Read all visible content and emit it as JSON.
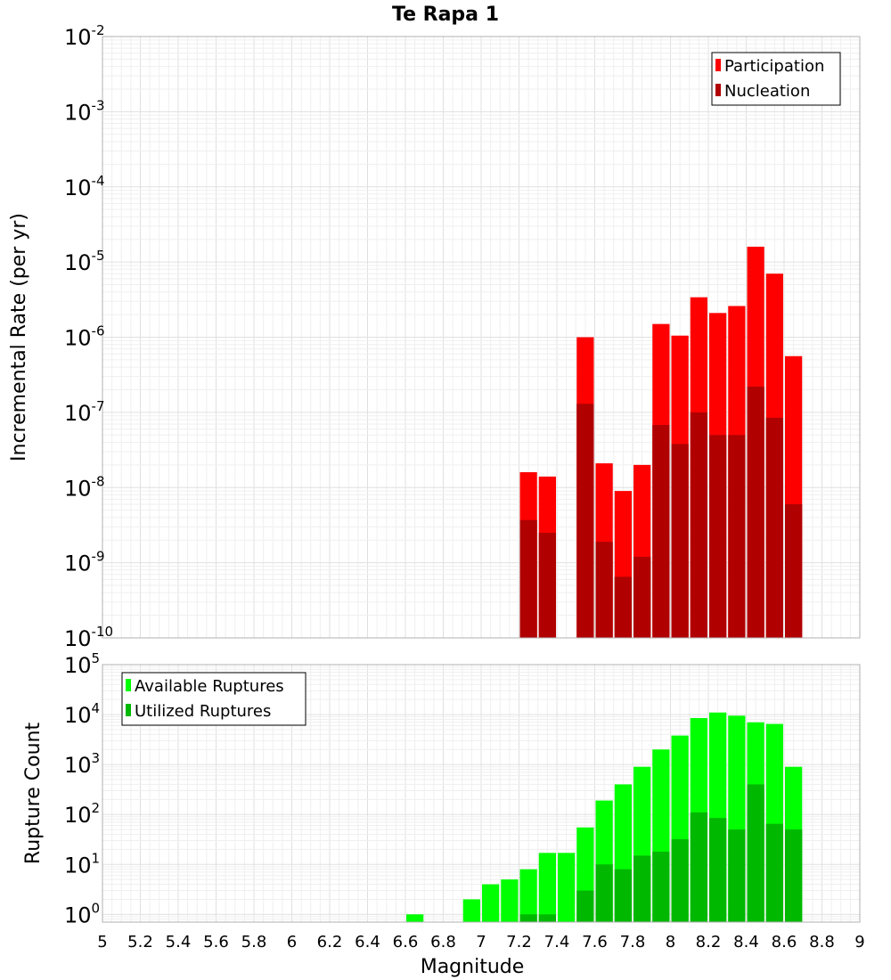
{
  "chart_data": [
    {
      "type": "bar",
      "title": "Te Rapa 1",
      "xlabel": "",
      "ylabel": "Incremental Rate (per yr)",
      "yscale": "log",
      "ylim": [
        1e-10,
        0.01
      ],
      "xlim": [
        5,
        9
      ],
      "bar_width": 0.1,
      "grid": true,
      "legend_position": "top-right",
      "series": [
        {
          "name": "Participation",
          "color": "#ff0000",
          "x": [
            7.25,
            7.35,
            7.55,
            7.65,
            7.75,
            7.85,
            7.95,
            8.05,
            8.15,
            8.25,
            8.35,
            8.45,
            8.55,
            8.65
          ],
          "values": [
            1.6e-08,
            1.4e-08,
            1e-06,
            2.1e-08,
            9e-09,
            2e-08,
            1.5e-06,
            1.05e-06,
            3.4e-06,
            2.1e-06,
            2.6e-06,
            1.6e-05,
            7e-06,
            5.6e-07
          ]
        },
        {
          "name": "Nucleation",
          "color": "#b00000",
          "x": [
            7.25,
            7.35,
            7.55,
            7.65,
            7.75,
            7.85,
            7.95,
            8.05,
            8.15,
            8.25,
            8.35,
            8.45,
            8.55,
            8.65
          ],
          "values": [
            3.7e-09,
            2.5e-09,
            1.3e-07,
            1.9e-09,
            6.5e-10,
            1.2e-09,
            6.8e-08,
            3.8e-08,
            1e-07,
            5e-08,
            5e-08,
            2.2e-07,
            8.5e-08,
            6e-09
          ]
        }
      ]
    },
    {
      "type": "bar",
      "title": "",
      "xlabel": "Magnitude",
      "ylabel": "Rupture Count",
      "yscale": "log",
      "ylim": [
        0.7,
        100000.0
      ],
      "xlim": [
        5,
        9
      ],
      "bar_width": 0.1,
      "grid": true,
      "legend_position": "top-left",
      "xticks": [
        "5",
        "5.2",
        "5.4",
        "5.6",
        "5.8",
        "6",
        "6.2",
        "6.4",
        "6.6",
        "6.8",
        "7",
        "7.2",
        "7.4",
        "7.6",
        "7.8",
        "8",
        "8.2",
        "8.4",
        "8.6",
        "8.8",
        "9"
      ],
      "series": [
        {
          "name": "Available Ruptures",
          "color": "#00ff00",
          "x": [
            6.65,
            6.95,
            7.05,
            7.15,
            7.25,
            7.35,
            7.45,
            7.55,
            7.65,
            7.75,
            7.85,
            7.95,
            8.05,
            8.15,
            8.25,
            8.35,
            8.45,
            8.55,
            8.65
          ],
          "values": [
            1,
            2,
            4,
            5,
            8,
            17,
            17,
            55,
            190,
            400,
            900,
            2000,
            3800,
            8500,
            11000,
            9500,
            7000,
            6500,
            900
          ]
        },
        {
          "name": "Utilized Ruptures",
          "color": "#00b800",
          "x": [
            7.25,
            7.35,
            7.55,
            7.65,
            7.75,
            7.85,
            7.95,
            8.05,
            8.15,
            8.25,
            8.35,
            8.45,
            8.55,
            8.65
          ],
          "values": [
            1,
            1,
            3,
            10,
            8,
            15,
            18,
            32,
            110,
            85,
            50,
            400,
            65,
            50
          ]
        }
      ]
    }
  ]
}
